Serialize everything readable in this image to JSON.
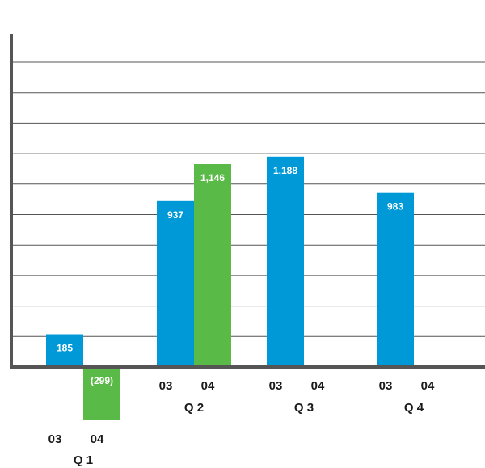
{
  "chart_data": {
    "type": "bar",
    "title": "",
    "xlabel": "",
    "ylabel": "",
    "ylim": [
      -350,
      1400
    ],
    "grid": true,
    "legend": "none",
    "categories": [
      "Q 1",
      "Q 2",
      "Q 3",
      "Q 4"
    ],
    "series": [
      {
        "key": "03",
        "color": "#0099d8",
        "values": [
          185,
          937,
          1188,
          983
        ],
        "labels": [
          "185",
          "937",
          "1,188",
          "983"
        ]
      },
      {
        "key": "04",
        "color": "#5aba47",
        "values": [
          -299,
          1146,
          null,
          null
        ],
        "labels": [
          "(299)",
          "1,146",
          "",
          ""
        ]
      }
    ]
  },
  "colors": {
    "grid": "#555555",
    "axis": "#555555",
    "text": "#1a1a1a",
    "bar_text": "#ffffff"
  }
}
